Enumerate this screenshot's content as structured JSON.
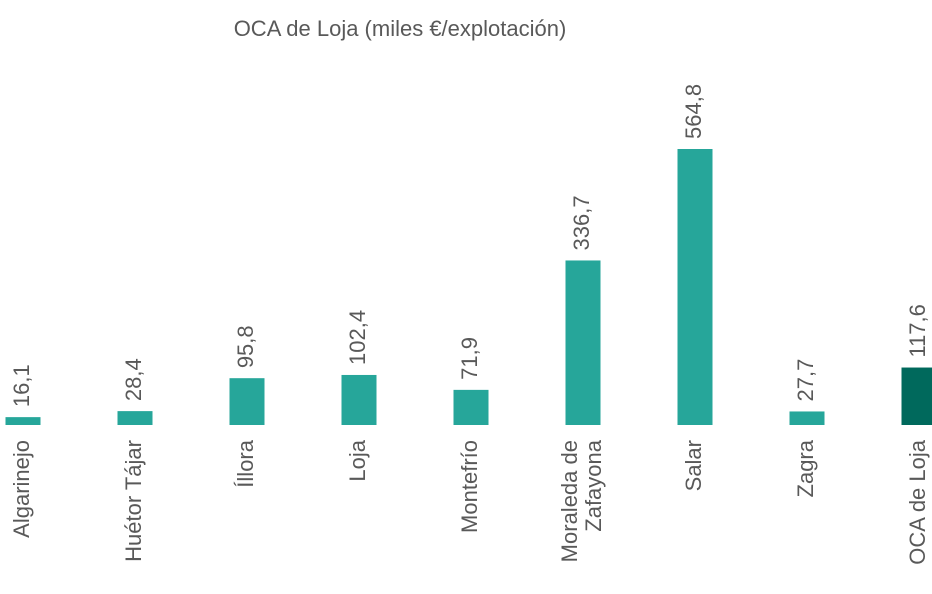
{
  "chart_data": {
    "type": "bar",
    "title": "OCA de Loja (miles €/explotación)",
    "categories": [
      "Algarinejo",
      "Huétor Tájar",
      "Íllora",
      "Loja",
      "Montefrío",
      "Moraleda de\nZafayona",
      "Salar",
      "Zagra",
      "OCA de Loja"
    ],
    "values": [
      16.1,
      28.4,
      95.8,
      102.4,
      71.9,
      336.7,
      564.8,
      27.7,
      117.6
    ],
    "value_labels": [
      "16,1",
      "28,4",
      "95,8",
      "102,4",
      "71,9",
      "336,7",
      "564,8",
      "27,7",
      "117,6"
    ],
    "colors": [
      "#26a69a",
      "#26a69a",
      "#26a69a",
      "#26a69a",
      "#26a69a",
      "#26a69a",
      "#26a69a",
      "#26a69a",
      "#00695c"
    ]
  }
}
